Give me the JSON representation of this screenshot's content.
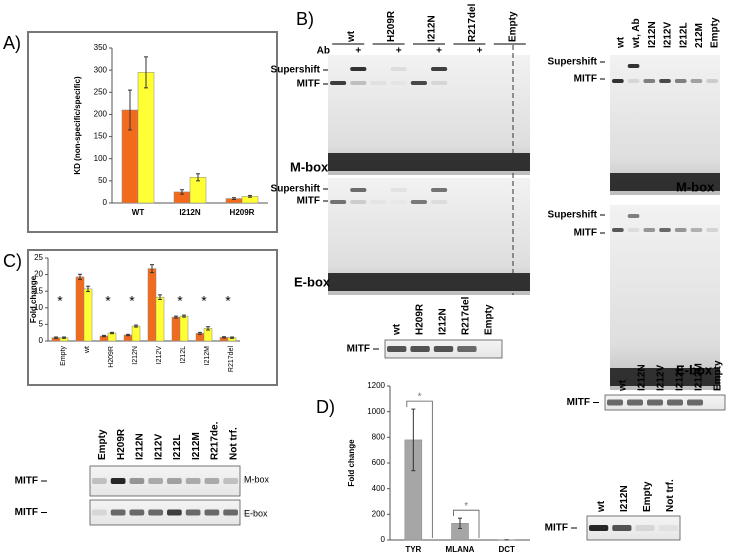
{
  "panel_labels": [
    "A)",
    "B)",
    "C)",
    "D)"
  ],
  "chart_data": [
    {
      "type": "bar",
      "ylabel": "KD (non-specific/specific)",
      "categories": [
        "WT",
        "I212N",
        "H209R"
      ],
      "series": [
        {
          "color": "#f26b1d",
          "values": [
            210,
            25,
            10
          ],
          "errors": [
            45,
            5,
            2
          ]
        },
        {
          "color": "#ffff33",
          "values": [
            295,
            58,
            15
          ],
          "errors": [
            35,
            8,
            2
          ]
        }
      ],
      "ylim": [
        0,
        350
      ],
      "yticks": [
        0,
        50,
        100,
        150,
        200,
        250,
        300,
        350
      ]
    },
    {
      "type": "bar",
      "ylabel": "Fold change",
      "categories": [
        "Empty",
        "wt",
        "H209R",
        "I212N",
        "I212V",
        "I212L",
        "I212M",
        "R217del"
      ],
      "series": [
        {
          "color": "#f26b1d",
          "values": [
            1,
            19.3,
            1.5,
            1.8,
            21.8,
            7.2,
            2.3,
            1.1
          ],
          "errors": [
            0.2,
            0.8,
            0.2,
            0.2,
            1.2,
            0.3,
            0.3,
            0.2
          ]
        },
        {
          "color": "#ffff33",
          "values": [
            1,
            15.7,
            2.4,
            4.5,
            13.2,
            7.5,
            3.8,
            1.0
          ],
          "errors": [
            0.2,
            0.8,
            0.2,
            0.3,
            0.7,
            0.3,
            0.5,
            0.2
          ]
        }
      ],
      "annotations": [
        {
          "category": "Empty",
          "text": "*"
        },
        {
          "category": "H209R",
          "text": "*"
        },
        {
          "category": "I212N",
          "text": "*"
        },
        {
          "category": "I212L",
          "text": "*"
        },
        {
          "category": "I212M",
          "text": "*"
        },
        {
          "category": "R217del",
          "text": "*"
        }
      ],
      "ylim": [
        0,
        25
      ],
      "yticks": [
        0,
        5,
        10,
        15,
        20,
        25
      ]
    },
    {
      "type": "bar",
      "ylabel": "Fold change",
      "categories": [
        "TYR",
        "MLANA",
        "DCT"
      ],
      "series": [
        {
          "color": "#a6a6a6",
          "values": [
            780,
            130,
            1
          ],
          "errors": [
            240,
            40,
            0
          ]
        }
      ],
      "annotations": [
        {
          "category": "TYR",
          "text": "*"
        },
        {
          "category": "MLANA",
          "text": "*"
        }
      ],
      "ylim": [
        0,
        1200
      ],
      "yticks": [
        0,
        200,
        400,
        600,
        800,
        1000,
        1200
      ]
    }
  ],
  "gels": {
    "b_left": {
      "lanes": [
        "wt",
        "H209R",
        "I212N",
        "R217del",
        "Empty"
      ],
      "ab_label": "Ab",
      "ab_marks": [
        "+",
        "+",
        "+",
        "+"
      ],
      "top_labels": [
        "Supershift",
        "MITF"
      ],
      "top_probe": "M-box",
      "bottom_labels": [
        "Supershift",
        "MITF"
      ],
      "bottom_probe": "E-box"
    },
    "b_left_western": {
      "lanes": [
        "wt",
        "H209R",
        "I212N",
        "R217del",
        "Empty"
      ],
      "label": "MITF"
    },
    "b_right": {
      "lanes": [
        "wt",
        "wt, Ab",
        "I212N",
        "I212V",
        "I212L",
        "212M",
        "Empty"
      ],
      "top_labels": [
        "Supershift",
        "MITF"
      ],
      "top_probe": "M-box",
      "bottom_labels": [
        "Supershift",
        "MITF"
      ],
      "bottom_probe": "E-box"
    },
    "b_right_western": {
      "lanes": [
        "wt",
        "I212N",
        "I212V",
        "I212L",
        "I212M",
        "Empty"
      ],
      "label": "MITF"
    },
    "c_western": {
      "lanes": [
        "Empty",
        "H209R",
        "I212N",
        "I212V",
        "I212L",
        "I212M",
        "R217de.",
        "Not trf."
      ],
      "rows": [
        {
          "label": "MITF",
          "probe": "M-box"
        },
        {
          "label": "MITF",
          "probe": "E-box"
        }
      ]
    },
    "d_western": {
      "lanes": [
        "wt",
        "I212N",
        "Empty",
        "Not trf."
      ],
      "label": "MITF"
    }
  }
}
